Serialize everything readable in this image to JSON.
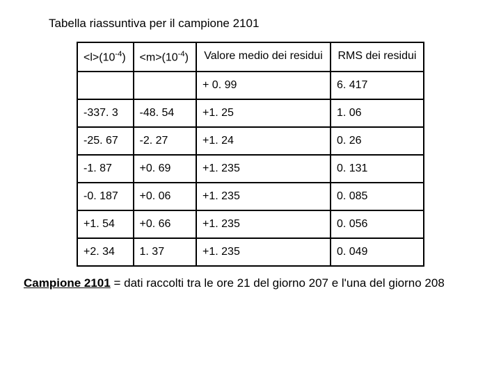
{
  "title_text": "Tabella riassuntiva per il campione 2101",
  "table": {
    "border_color": "#000000",
    "font_size": 16,
    "headers": {
      "col0_pre": "<l>(10",
      "col0_sup": "-4",
      "col0_post": ")",
      "col1_pre": "<m>(10",
      "col1_sup": "-4",
      "col1_post": ")",
      "col2": "Valore medio dei residui",
      "col3": "RMS dei residui"
    },
    "row1": {
      "c0": "",
      "c1": "",
      "c2": "+ 0. 99",
      "c3": "6. 417"
    },
    "row2": {
      "c0": "-337. 3",
      "c1": "-48. 54",
      "c2": "+1. 25",
      "c3": "1. 06"
    },
    "row3": {
      "c0": "-25. 67",
      "c1": "-2. 27",
      "c2": "+1. 24",
      "c3": "0. 26"
    },
    "row4": {
      "c0": "-1. 87",
      "c1": "+0. 69",
      "c2": "+1. 235",
      "c3": "0. 131"
    },
    "row5": {
      "c0": "-0. 187",
      "c1": "+0. 06",
      "c2": "+1. 235",
      "c3": "0. 085"
    },
    "row6": {
      "c0": "+1. 54",
      "c1": "+0. 66",
      "c2": "+1. 235",
      "c3": "0. 056"
    },
    "row7": {
      "c0": "+2. 34",
      "c1": "1. 37",
      "c2": "+1. 235",
      "c3": "0. 049"
    }
  },
  "footer": {
    "strong": "Campione 2101",
    "rest": " = dati raccolti tra le ore 21 del giorno 207 e l'una del giorno 208"
  },
  "colors": {
    "background": "#ffffff",
    "text": "#000000",
    "border": "#000000"
  }
}
